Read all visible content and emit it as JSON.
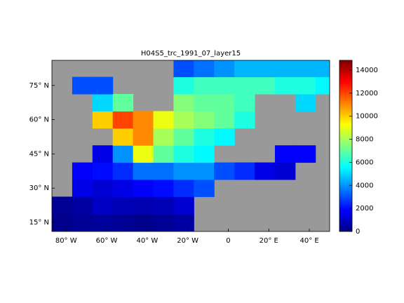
{
  "chart_data": {
    "type": "heatmap",
    "title": "H04S5_trc_1991_07_layer15",
    "xlim": [
      -87,
      50
    ],
    "ylim": [
      11,
      86
    ],
    "xticks": [
      {
        "value": -80,
        "label": "80° W"
      },
      {
        "value": -60,
        "label": "60° W"
      },
      {
        "value": -40,
        "label": "40° W"
      },
      {
        "value": -20,
        "label": "20° W"
      },
      0,
      {
        "value": 20,
        "label": "20° E"
      },
      {
        "value": 40,
        "label": "40° E"
      }
    ],
    "yticks": [
      {
        "value": 15,
        "label": "15° N"
      },
      {
        "value": 30,
        "label": "30° N"
      },
      {
        "value": 45,
        "label": "45° N"
      },
      {
        "value": 60,
        "label": "60° N"
      },
      {
        "value": 75,
        "label": "75° N"
      }
    ],
    "land_color": "#999999",
    "colormap": "jet",
    "field": {
      "lon": [
        -82,
        -72,
        -62,
        -52,
        -42,
        -32,
        -22,
        -12,
        -2,
        8,
        18,
        28,
        38,
        48
      ],
      "lat": [
        15,
        22.5,
        30,
        37.5,
        45,
        52.5,
        60,
        67.5,
        75,
        82.5
      ],
      "values": [
        [
          200,
          300,
          400,
          300,
          200,
          300,
          500,
          null,
          null,
          null,
          null,
          null,
          null,
          null
        ],
        [
          300,
          500,
          1000,
          800,
          700,
          800,
          1200,
          null,
          null,
          null,
          null,
          null,
          null,
          null
        ],
        [
          null,
          1500,
          1200,
          1500,
          1800,
          2000,
          2500,
          3000,
          null,
          null,
          null,
          null,
          null,
          null
        ],
        [
          null,
          1800,
          2000,
          2500,
          3500,
          3500,
          4000,
          4000,
          3000,
          2500,
          1500,
          1200,
          null,
          null
        ],
        [
          null,
          null,
          1500,
          4000,
          9000,
          7000,
          6000,
          5500,
          null,
          null,
          null,
          1800,
          1800,
          null
        ],
        [
          null,
          null,
          null,
          10000,
          11000,
          8000,
          7000,
          6000,
          5500,
          null,
          null,
          null,
          null,
          null
        ],
        [
          null,
          null,
          10000,
          12000,
          11000,
          9000,
          8000,
          7500,
          7000,
          6000,
          null,
          null,
          null,
          null
        ],
        [
          null,
          null,
          5000,
          7000,
          null,
          null,
          7500,
          7000,
          7000,
          6500,
          null,
          null,
          5000,
          null
        ],
        [
          null,
          3000,
          3000,
          null,
          null,
          null,
          6000,
          6500,
          6500,
          6500,
          6500,
          6000,
          6000,
          5500
        ],
        [
          null,
          null,
          null,
          null,
          null,
          null,
          3000,
          3500,
          4000,
          4500,
          4500,
          4500,
          4500,
          4500
        ]
      ]
    },
    "colorbar": {
      "clim": [
        0,
        14850
      ],
      "ticks": [
        0,
        2000,
        4000,
        6000,
        8000,
        10000,
        12000,
        14000
      ]
    }
  }
}
